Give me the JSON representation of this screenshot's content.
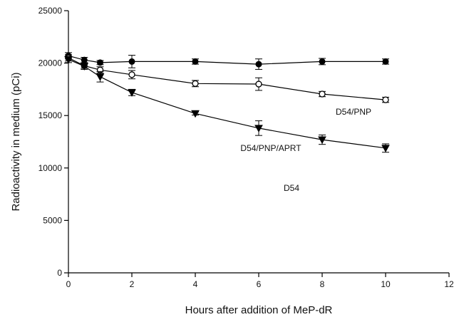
{
  "chart_data": {
    "type": "line",
    "xlabel": "Hours after addition of MeP-dR",
    "ylabel": "Radioactivity in medium (pCi)",
    "xlim": [
      0,
      12
    ],
    "ylim": [
      0,
      25000
    ],
    "xticks": [
      0,
      2,
      4,
      6,
      8,
      10,
      12
    ],
    "yticks": [
      0,
      5000,
      10000,
      15000,
      20000,
      25000
    ],
    "grid": false,
    "legend": "none",
    "series": [
      {
        "name": "D54",
        "marker": "filled-circle",
        "color": "#000000",
        "x": [
          0,
          0.5,
          1,
          2,
          4,
          6,
          8,
          10
        ],
        "y": [
          20700,
          20300,
          20050,
          20150,
          20150,
          19900,
          20150,
          20150
        ],
        "err": [
          300,
          250,
          200,
          600,
          250,
          500,
          300,
          250
        ]
      },
      {
        "name": "D54/PNP",
        "marker": "open-circle",
        "color": "#000000",
        "x": [
          0,
          0.5,
          1,
          2,
          4,
          6,
          8,
          10
        ],
        "y": [
          20500,
          19750,
          19350,
          18900,
          18050,
          18000,
          17050,
          16500
        ],
        "err": [
          300,
          250,
          300,
          400,
          300,
          600,
          250,
          250
        ]
      },
      {
        "name": "D54/PNP/APRT",
        "marker": "filled-triangle-down",
        "color": "#000000",
        "x": [
          0,
          0.5,
          1,
          2,
          4,
          6,
          8,
          10
        ],
        "y": [
          20350,
          19700,
          18700,
          17200,
          15200,
          13800,
          12700,
          11900
        ],
        "err": [
          300,
          300,
          500,
          300,
          150,
          700,
          450,
          400
        ]
      }
    ]
  }
}
